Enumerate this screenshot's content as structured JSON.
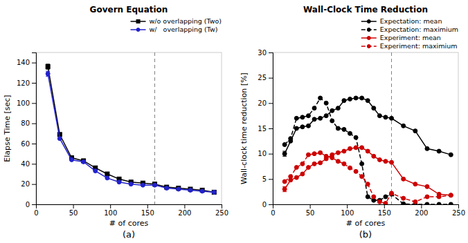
{
  "chart_data": [
    {
      "type": "line",
      "title": "Govern Equation",
      "x_label": "# of cores",
      "y_label": "Elapse Time [sec]",
      "annotation": "(a)",
      "x": [
        16,
        32,
        48,
        64,
        80,
        96,
        112,
        128,
        144,
        160,
        176,
        192,
        208,
        224,
        240
      ],
      "series": [
        {
          "name": "w/o overlapping (Two)",
          "color": "#000000",
          "marker": "square",
          "line_style": "solid",
          "values": [
            136,
            69,
            46,
            43,
            36,
            30,
            25,
            22,
            21,
            20,
            17,
            16,
            15,
            14,
            12
          ],
          "errors": [
            2.5,
            null,
            null,
            null,
            null,
            null,
            null,
            null,
            null,
            null,
            null,
            null,
            null,
            null,
            null
          ]
        },
        {
          "name": "w/   overlapping (Tw)",
          "color": "#2222cc",
          "marker": "circle",
          "line_style": "solid",
          "values": [
            129,
            65,
            44,
            42,
            33,
            26,
            22,
            20,
            19,
            19,
            16,
            15,
            14,
            13,
            12
          ],
          "errors": [
            2.5,
            null,
            null,
            null,
            null,
            null,
            null,
            null,
            null,
            null,
            null,
            null,
            null,
            null,
            null
          ]
        }
      ],
      "vline": 160,
      "xlim": [
        0,
        250
      ],
      "xticks": [
        0,
        50,
        100,
        150,
        200,
        250
      ],
      "ylim": [
        0,
        150
      ],
      "yticks": [
        0,
        20,
        40,
        60,
        80,
        100,
        120,
        140
      ],
      "grid": false,
      "legend": "top"
    },
    {
      "type": "line",
      "title": "Wall-Clock Time Reduction",
      "x_label": "# of cores",
      "y_label": "Wall-clock time reduction [%]",
      "annotation": "(b)",
      "x": [
        16,
        24,
        32,
        40,
        48,
        56,
        64,
        72,
        80,
        88,
        96,
        104,
        112,
        120,
        128,
        136,
        144,
        152,
        160,
        176,
        192,
        208,
        224,
        240
      ],
      "series": [
        {
          "name": "Expectation: mean",
          "color": "#000000",
          "marker": "circle",
          "line_style": "solid",
          "values": [
            10.0,
            12.5,
            15.0,
            15.3,
            15.5,
            16.8,
            17.0,
            17.5,
            18.5,
            19.0,
            20.5,
            20.8,
            21.0,
            21.0,
            20.5,
            19.0,
            17.5,
            17.2,
            17.0,
            15.5,
            14.5,
            11.0,
            10.5,
            9.8
          ],
          "errors": [
            0.5,
            null,
            null,
            null,
            null,
            null,
            null,
            null,
            null,
            null,
            null,
            null,
            null,
            null,
            null,
            null,
            null,
            null,
            null,
            null,
            null,
            null,
            null,
            null
          ]
        },
        {
          "name": "Expectation: maximium",
          "color": "#000000",
          "marker": "circle",
          "line_style": "dashed",
          "values": [
            11.8,
            13.0,
            17.0,
            17.2,
            17.5,
            19.0,
            21.0,
            20.0,
            16.5,
            15.0,
            14.8,
            14.0,
            13.2,
            8.0,
            1.5,
            0.8,
            0.8,
            1.5,
            2.0,
            0.1,
            0.0,
            0.0,
            0.0,
            0.0
          ]
        },
        {
          "name": "Experiment: mean",
          "color": "#cc0000",
          "marker": "circle",
          "line_style": "solid",
          "values": [
            3.0,
            4.8,
            5.3,
            6.0,
            7.3,
            8.0,
            8.2,
            9.0,
            9.8,
            10.2,
            10.5,
            11.0,
            11.2,
            11.2,
            10.5,
            9.5,
            8.8,
            8.5,
            8.3,
            5.0,
            4.0,
            3.5,
            2.0,
            1.8
          ],
          "errors": [
            0.5,
            null,
            null,
            null,
            null,
            null,
            null,
            null,
            null,
            null,
            null,
            null,
            null,
            null,
            null,
            null,
            null,
            null,
            null,
            null,
            null,
            null,
            null,
            null
          ]
        },
        {
          "name": "Experiment: maximium",
          "color": "#cc0000",
          "marker": "circle",
          "line_style": "dashed",
          "values": [
            4.5,
            5.5,
            7.3,
            8.0,
            9.8,
            10.0,
            10.2,
            9.5,
            9.2,
            8.5,
            8.0,
            7.2,
            6.5,
            5.5,
            4.0,
            1.5,
            0.5,
            0.2,
            2.2,
            1.2,
            0.5,
            1.5,
            1.5,
            1.8
          ]
        }
      ],
      "vline": 160,
      "xlim": [
        0,
        250
      ],
      "xticks": [
        0,
        50,
        100,
        150,
        200,
        250
      ],
      "ylim": [
        0,
        30
      ],
      "yticks": [
        0,
        5,
        10,
        15,
        20,
        25,
        30
      ],
      "grid": false,
      "legend": "top"
    }
  ]
}
